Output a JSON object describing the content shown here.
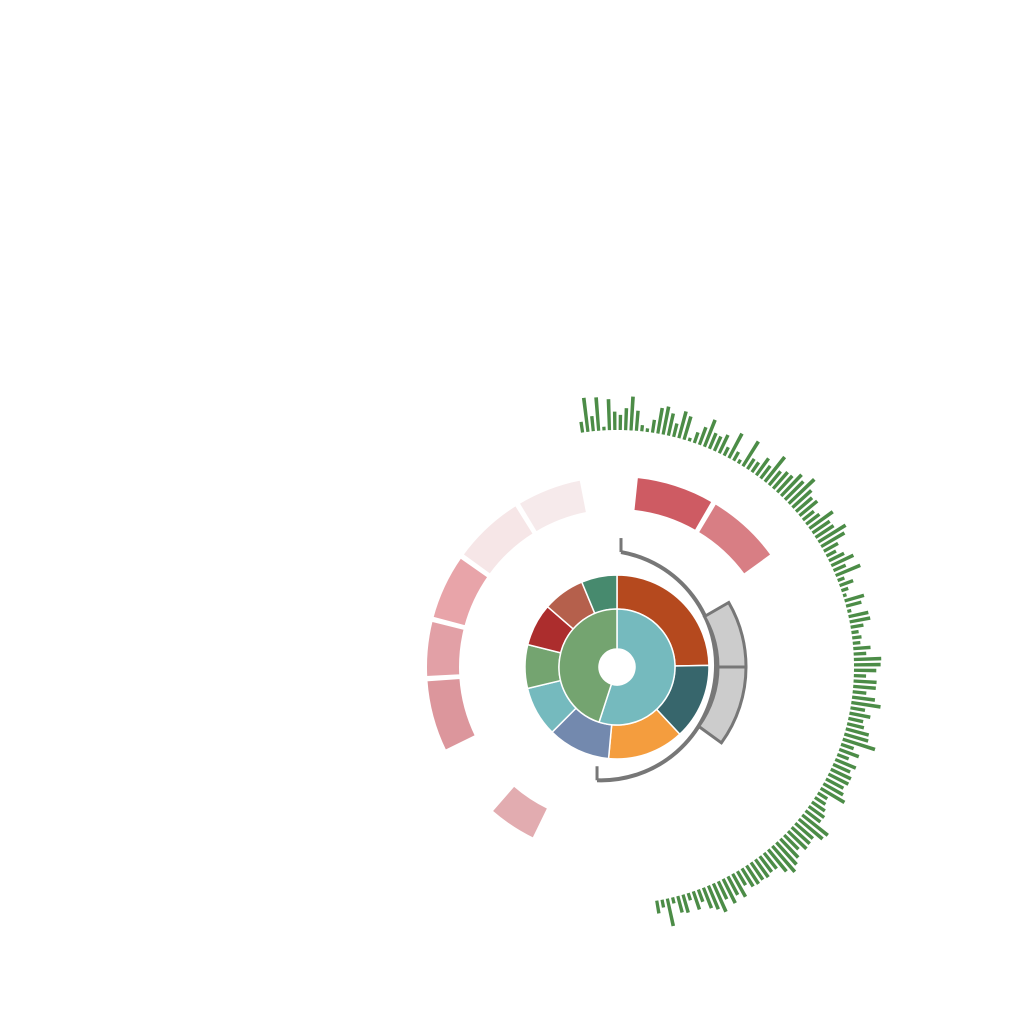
{
  "chart_data": {
    "type": "sunburst",
    "title": "",
    "inner_ring": {
      "segments": [
        {
          "value": 55,
          "color": "#75babe"
        },
        {
          "value": 45,
          "color": "#74a470"
        }
      ]
    },
    "middle_ring": {
      "segments": [
        {
          "value": 24.5,
          "color": "#b5491e"
        },
        {
          "value": 13.2,
          "color": "#37666c"
        },
        {
          "value": 13.3,
          "color": "#f49d3e"
        },
        {
          "value": 10.9,
          "color": "#7389ae"
        },
        {
          "value": 8.7,
          "color": "#75babe"
        },
        {
          "value": 7.6,
          "color": "#74a470"
        },
        {
          "value": 7.4,
          "color": "#ac2d2d"
        },
        {
          "value": 7.3,
          "color": "#b5604c"
        },
        {
          "value": 6.2,
          "color": "#478a6e"
        }
      ]
    },
    "bracket": {
      "from_deg": 2,
      "to_deg": 190,
      "boxes": [
        {
          "from_deg": 60,
          "to_deg": 90
        },
        {
          "from_deg": 90,
          "to_deg": 126
        }
      ],
      "colors": {
        "line": "#777777",
        "box_fill": "#cccccc"
      }
    },
    "outer_ring": {
      "segments": [
        {
          "from_deg": 6,
          "to_deg": 30,
          "color": "#ce5b63"
        },
        {
          "from_deg": 31,
          "to_deg": 54,
          "color": "#d87e84"
        },
        {
          "from_deg": 206,
          "to_deg": 221,
          "color": "#e2acb0"
        },
        {
          "from_deg": 244,
          "to_deg": 266,
          "color": "#dc969c"
        },
        {
          "from_deg": 267,
          "to_deg": 284,
          "color": "#e2a0a6"
        },
        {
          "from_deg": 285,
          "to_deg": 305,
          "color": "#e8a4a9"
        },
        {
          "from_deg": 306,
          "to_deg": 328,
          "color": "#f6e6e7"
        },
        {
          "from_deg": 329,
          "to_deg": 349,
          "color": "#f6eaeb"
        }
      ]
    },
    "bar_track": {
      "from_deg": 351,
      "to_deg": 171,
      "count": 138,
      "color": "#4c8c47",
      "values": [
        0.3,
        0.95,
        0.42,
        0.93,
        0.1,
        0.86,
        0.51,
        0.42,
        0.61,
        0.94,
        0.56,
        0.17,
        0.1,
        0.36,
        0.72,
        0.79,
        0.63,
        0.38,
        0.77,
        0.67,
        0.1,
        0.31,
        0.52,
        0.8,
        0.47,
        0.44,
        0.56,
        0.26,
        0.77,
        0.28,
        0.12,
        0.81,
        0.34,
        0.33,
        0.58,
        0.44,
        0.88,
        0.5,
        0.61,
        0.62,
        0.82,
        0.72,
        0.98,
        0.71,
        0.59,
        0.64,
        0.39,
        0.46,
        0.8,
        0.58,
        0.6,
        0.89,
        0.75,
        0.45,
        0.3,
        0.47,
        0.68,
        0.37,
        0.74,
        0.2,
        0.4,
        0.2,
        0.1,
        0.56,
        0.44,
        0.11,
        0.56,
        0.58,
        0.36,
        0.2,
        0.26,
        0.21,
        0.48,
        0.35,
        0.76,
        0.74,
        0.62,
        0.34,
        0.64,
        0.63,
        0.38,
        0.64,
        0.82,
        0.41,
        0.59,
        0.42,
        0.48,
        0.66,
        0.69,
        0.94,
        0.37,
        0.58,
        0.34,
        0.62,
        0.52,
        0.62,
        0.62,
        0.55,
        0.63,
        0.77,
        0.31,
        0.35,
        0.44,
        0.53,
        0.52,
        0.91,
        0.86,
        0.65,
        0.68,
        0.71,
        0.56,
        0.72,
        0.83,
        0.95,
        0.79,
        0.56,
        0.55,
        0.61,
        0.58,
        0.61,
        0.59,
        0.45,
        0.73,
        0.58,
        0.75,
        0.55,
        0.86,
        0.71,
        0.61,
        0.36,
        0.53,
        0.21,
        0.52,
        0.47,
        0.17,
        0.78,
        0.22,
        0.36
      ]
    }
  }
}
